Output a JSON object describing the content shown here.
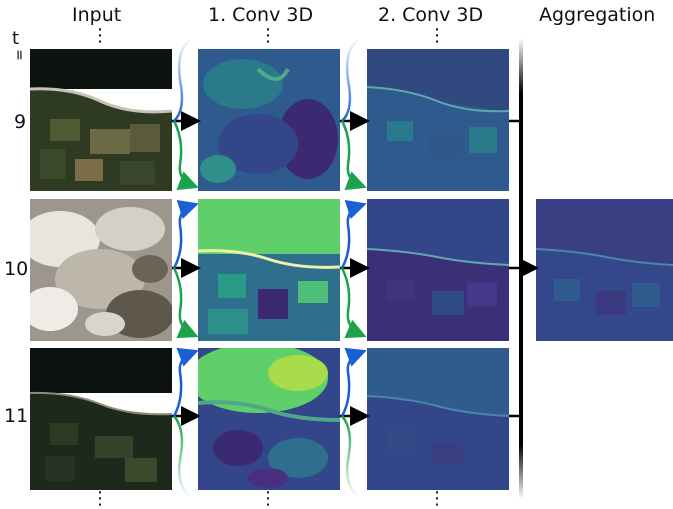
{
  "headers": {
    "input": "Input",
    "conv1": "1. Conv 3D",
    "conv2": "2. Conv 3D",
    "aggregation": "Aggregation"
  },
  "time_axis": {
    "t_label": "t",
    "equals_sign": "="
  },
  "rows": [
    {
      "t": "9"
    },
    {
      "t": "10"
    },
    {
      "t": "11"
    }
  ],
  "ellipsis": "⋮",
  "colors": {
    "arrow_black": "#000000",
    "arrow_blue": "#1a5fd6",
    "arrow_green": "#1aa34a",
    "viridis_dark": "#3b2a72",
    "viridis_mid": "#2e6f8e",
    "viridis_light": "#5fcf6a"
  }
}
